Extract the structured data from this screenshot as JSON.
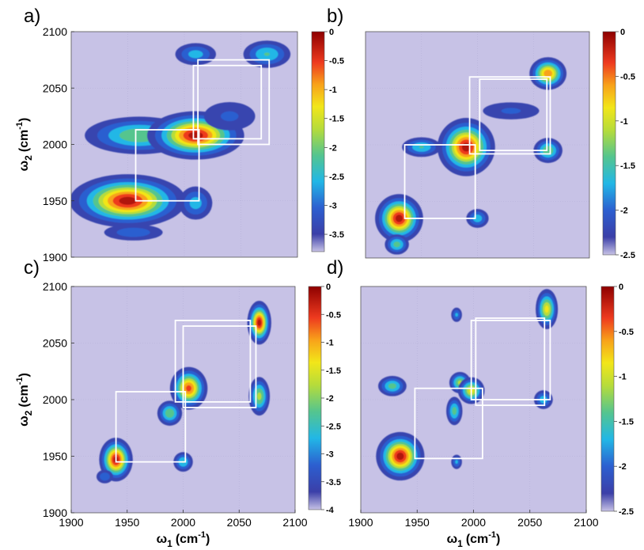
{
  "figure": {
    "panels": [
      "a)",
      "b)",
      "c)",
      "d)"
    ]
  },
  "chart_data": [
    {
      "type": "heatmap",
      "panel_label": "a)",
      "xlabel_main": "ω",
      "xlabel_sub": "1",
      "xlabel_unit": "(cm",
      "xlabel_exp": "-1",
      "xlabel_close": ")",
      "ylabel_main": "ω",
      "ylabel_sub": "2",
      "ylabel_unit": "(cm",
      "ylabel_exp": "-1",
      "ylabel_close": ")",
      "show_xlabel": false,
      "show_ylabel": true,
      "xlim": [
        1900,
        2100
      ],
      "ylim": [
        1900,
        2100
      ],
      "xticks": [],
      "yticks": [
        "1900",
        "1950",
        "2000",
        "2050",
        "2100"
      ],
      "colorbar": {
        "ticks": [
          "0",
          "-0.5",
          "-1",
          "-1.5",
          "-2",
          "-2.5",
          "-3",
          "-3.5"
        ],
        "min": -3.8,
        "max": 0
      },
      "peaks": [
        {
          "x": 1950,
          "y": 1950,
          "amp": 1.0,
          "sx": 24,
          "sy": 11
        },
        {
          "x": 1960,
          "y": 2008,
          "amp": 0.55,
          "sx": 26,
          "sy": 9
        },
        {
          "x": 2010,
          "y": 2008,
          "amp": 1.0,
          "sx": 20,
          "sy": 10
        },
        {
          "x": 2040,
          "y": 2025,
          "amp": 0.22,
          "sx": 18,
          "sy": 10
        },
        {
          "x": 2010,
          "y": 1948,
          "amp": 0.38,
          "sx": 9,
          "sy": 9
        },
        {
          "x": 2010,
          "y": 2080,
          "amp": 0.38,
          "sx": 11,
          "sy": 6
        },
        {
          "x": 2073,
          "y": 2080,
          "amp": 0.45,
          "sx": 12,
          "sy": 7
        },
        {
          "x": 1955,
          "y": 1922,
          "amp": 0.28,
          "sx": 18,
          "sy": 5
        }
      ],
      "boxes": [
        {
          "x1": 1957,
          "x2": 2013,
          "y1": 1950,
          "y2": 2013
        },
        {
          "x1": 2012,
          "x2": 2075,
          "y1": 2000,
          "y2": 2075
        },
        {
          "x1": 2008,
          "x2": 2068,
          "y1": 2005,
          "y2": 2070
        }
      ]
    },
    {
      "type": "heatmap",
      "panel_label": "b)",
      "xlabel_main": "ω",
      "xlabel_sub": "1",
      "xlabel_unit": "(cm",
      "xlabel_exp": "-1",
      "xlabel_close": ")",
      "ylabel_main": "ω",
      "ylabel_sub": "2",
      "ylabel_unit": "(cm",
      "ylabel_exp": "-1",
      "ylabel_close": ")",
      "show_xlabel": false,
      "show_ylabel": false,
      "xlim": [
        1900,
        2100
      ],
      "ylim": [
        1900,
        2100
      ],
      "xticks": [],
      "yticks": [],
      "colorbar": {
        "ticks": [
          "0",
          "-0.5",
          "-1",
          "-1.5",
          "-2",
          "-2.5"
        ],
        "min": -2.5,
        "max": 0
      },
      "peaks": [
        {
          "x": 1930,
          "y": 1935,
          "amp": 1.0,
          "sx": 10,
          "sy": 10
        },
        {
          "x": 1928,
          "y": 1912,
          "amp": 0.5,
          "sx": 6,
          "sy": 5
        },
        {
          "x": 1990,
          "y": 1998,
          "amp": 1.0,
          "sx": 12,
          "sy": 12
        },
        {
          "x": 1950,
          "y": 1998,
          "amp": 0.45,
          "sx": 10,
          "sy": 5
        },
        {
          "x": 2000,
          "y": 1935,
          "amp": 0.4,
          "sx": 6,
          "sy": 5
        },
        {
          "x": 2063,
          "y": 2063,
          "amp": 0.85,
          "sx": 8,
          "sy": 7
        },
        {
          "x": 2063,
          "y": 1995,
          "amp": 0.55,
          "sx": 7,
          "sy": 6
        },
        {
          "x": 2030,
          "y": 2030,
          "amp": 0.22,
          "sx": 20,
          "sy": 6
        }
      ],
      "boxes": [
        {
          "x1": 1935,
          "x2": 1998,
          "y1": 1935,
          "y2": 2000
        },
        {
          "x1": 1993,
          "x2": 2065,
          "y1": 1992,
          "y2": 2060
        },
        {
          "x1": 2002,
          "x2": 2062,
          "y1": 1995,
          "y2": 2058
        }
      ]
    },
    {
      "type": "heatmap",
      "panel_label": "c)",
      "xlabel_main": "ω",
      "xlabel_sub": "1",
      "xlabel_unit": "(cm",
      "xlabel_exp": "-1",
      "xlabel_close": ")",
      "ylabel_main": "ω",
      "ylabel_sub": "2",
      "ylabel_unit": "(cm",
      "ylabel_exp": "-1",
      "ylabel_close": ")",
      "show_xlabel": true,
      "show_ylabel": true,
      "xlim": [
        1900,
        2100
      ],
      "ylim": [
        1900,
        2100
      ],
      "xticks": [
        "1900",
        "1950",
        "2000",
        "2050",
        "2100"
      ],
      "yticks": [
        "1900",
        "1950",
        "2000",
        "2050",
        "2100"
      ],
      "colorbar": {
        "ticks": [
          "0",
          "-0.5",
          "-1",
          "-1.5",
          "-2",
          "-2.5",
          "-3",
          "-3.5",
          "-4"
        ],
        "min": -4,
        "max": 0
      },
      "peaks": [
        {
          "x": 1940,
          "y": 1947,
          "amp": 1.0,
          "sx": 7,
          "sy": 9
        },
        {
          "x": 1988,
          "y": 1988,
          "amp": 0.55,
          "sx": 6,
          "sy": 6
        },
        {
          "x": 2005,
          "y": 2010,
          "amp": 0.9,
          "sx": 8,
          "sy": 9
        },
        {
          "x": 2000,
          "y": 1945,
          "amp": 0.45,
          "sx": 5,
          "sy": 5
        },
        {
          "x": 2068,
          "y": 2068,
          "amp": 1.0,
          "sx": 5,
          "sy": 9
        },
        {
          "x": 2068,
          "y": 2003,
          "amp": 0.6,
          "sx": 5,
          "sy": 9
        },
        {
          "x": 1930,
          "y": 1932,
          "amp": 0.3,
          "sx": 5,
          "sy": 4
        }
      ],
      "boxes": [
        {
          "x1": 1940,
          "x2": 2002,
          "y1": 1945,
          "y2": 2007
        },
        {
          "x1": 1993,
          "x2": 2060,
          "y1": 1998,
          "y2": 2070
        },
        {
          "x1": 2000,
          "x2": 2065,
          "y1": 1993,
          "y2": 2065
        }
      ]
    },
    {
      "type": "heatmap",
      "panel_label": "d)",
      "xlabel_main": "ω",
      "xlabel_sub": "1",
      "xlabel_unit": "(cm",
      "xlabel_exp": "-1",
      "xlabel_close": ")",
      "ylabel_main": "ω",
      "ylabel_sub": "2",
      "ylabel_unit": "(cm",
      "ylabel_exp": "-1",
      "ylabel_close": ")",
      "show_xlabel": true,
      "show_ylabel": false,
      "xlim": [
        1900,
        2100
      ],
      "ylim": [
        1900,
        2100
      ],
      "xticks": [
        "1900",
        "1950",
        "2000",
        "2050",
        "2100"
      ],
      "yticks": [],
      "colorbar": {
        "ticks": [
          "0",
          "-0.5",
          "-1",
          "-1.5",
          "-2",
          "-2.5"
        ],
        "min": -2.5,
        "max": 0
      },
      "peaks": [
        {
          "x": 1935,
          "y": 1950,
          "amp": 1.0,
          "sx": 10,
          "sy": 10
        },
        {
          "x": 1928,
          "y": 2012,
          "amp": 0.5,
          "sx": 7,
          "sy": 5
        },
        {
          "x": 1988,
          "y": 2015,
          "amp": 0.6,
          "sx": 5,
          "sy": 5
        },
        {
          "x": 1983,
          "y": 1990,
          "amp": 0.5,
          "sx": 4,
          "sy": 7
        },
        {
          "x": 1998,
          "y": 2008,
          "amp": 0.7,
          "sx": 6,
          "sy": 6
        },
        {
          "x": 2065,
          "y": 2080,
          "amp": 0.7,
          "sx": 5,
          "sy": 9
        },
        {
          "x": 2062,
          "y": 2000,
          "amp": 0.4,
          "sx": 5,
          "sy": 5
        },
        {
          "x": 1985,
          "y": 1945,
          "amp": 0.35,
          "sx": 3,
          "sy": 4
        },
        {
          "x": 1985,
          "y": 2075,
          "amp": 0.35,
          "sx": 3,
          "sy": 4
        }
      ],
      "boxes": [
        {
          "x1": 1948,
          "x2": 2008,
          "y1": 1948,
          "y2": 2010
        },
        {
          "x1": 1998,
          "x2": 2068,
          "y1": 2000,
          "y2": 2070
        },
        {
          "x1": 2002,
          "x2": 2063,
          "y1": 1995,
          "y2": 2072
        }
      ]
    }
  ]
}
